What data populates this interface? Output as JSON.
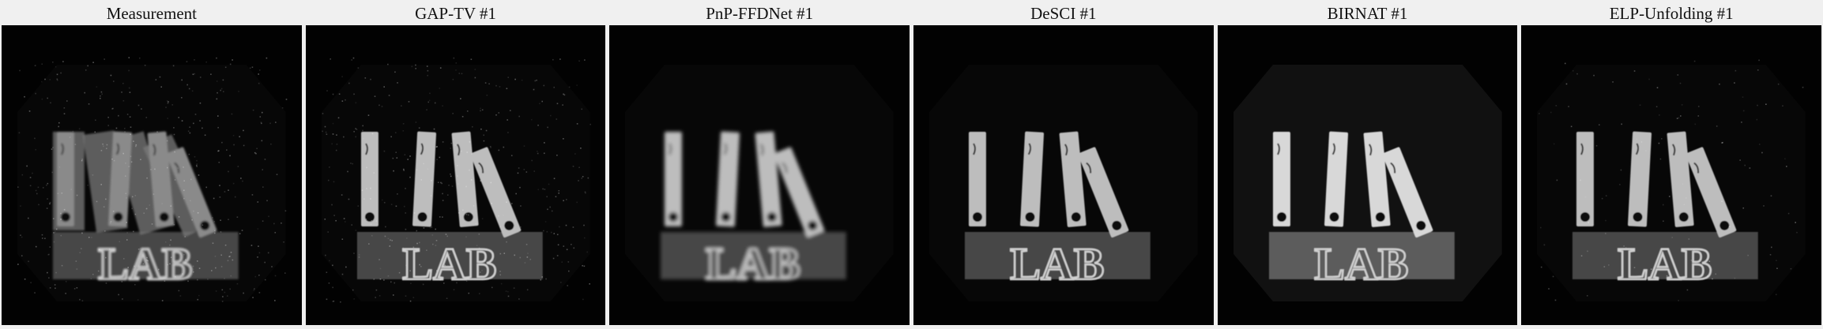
{
  "panels": [
    {
      "id": "measurement",
      "title": "Measurement",
      "style": "noisy-overlap"
    },
    {
      "id": "gap-tv",
      "title": "GAP-TV #1",
      "style": "noisy"
    },
    {
      "id": "pnp-ffdnet",
      "title": "PnP-FFDNet #1",
      "style": "blurry"
    },
    {
      "id": "desci",
      "title": "DeSCI #1",
      "style": "smooth"
    },
    {
      "id": "birnat",
      "title": "BIRNAT #1",
      "style": "bright"
    },
    {
      "id": "elp-unfolding",
      "title": "ELP-Unfolding #1",
      "style": "sharp"
    }
  ],
  "scene": {
    "description_colors": {
      "background": "#020202",
      "object": "#bdbdbd",
      "marker": "#111111"
    },
    "sign_text": "LAB"
  }
}
